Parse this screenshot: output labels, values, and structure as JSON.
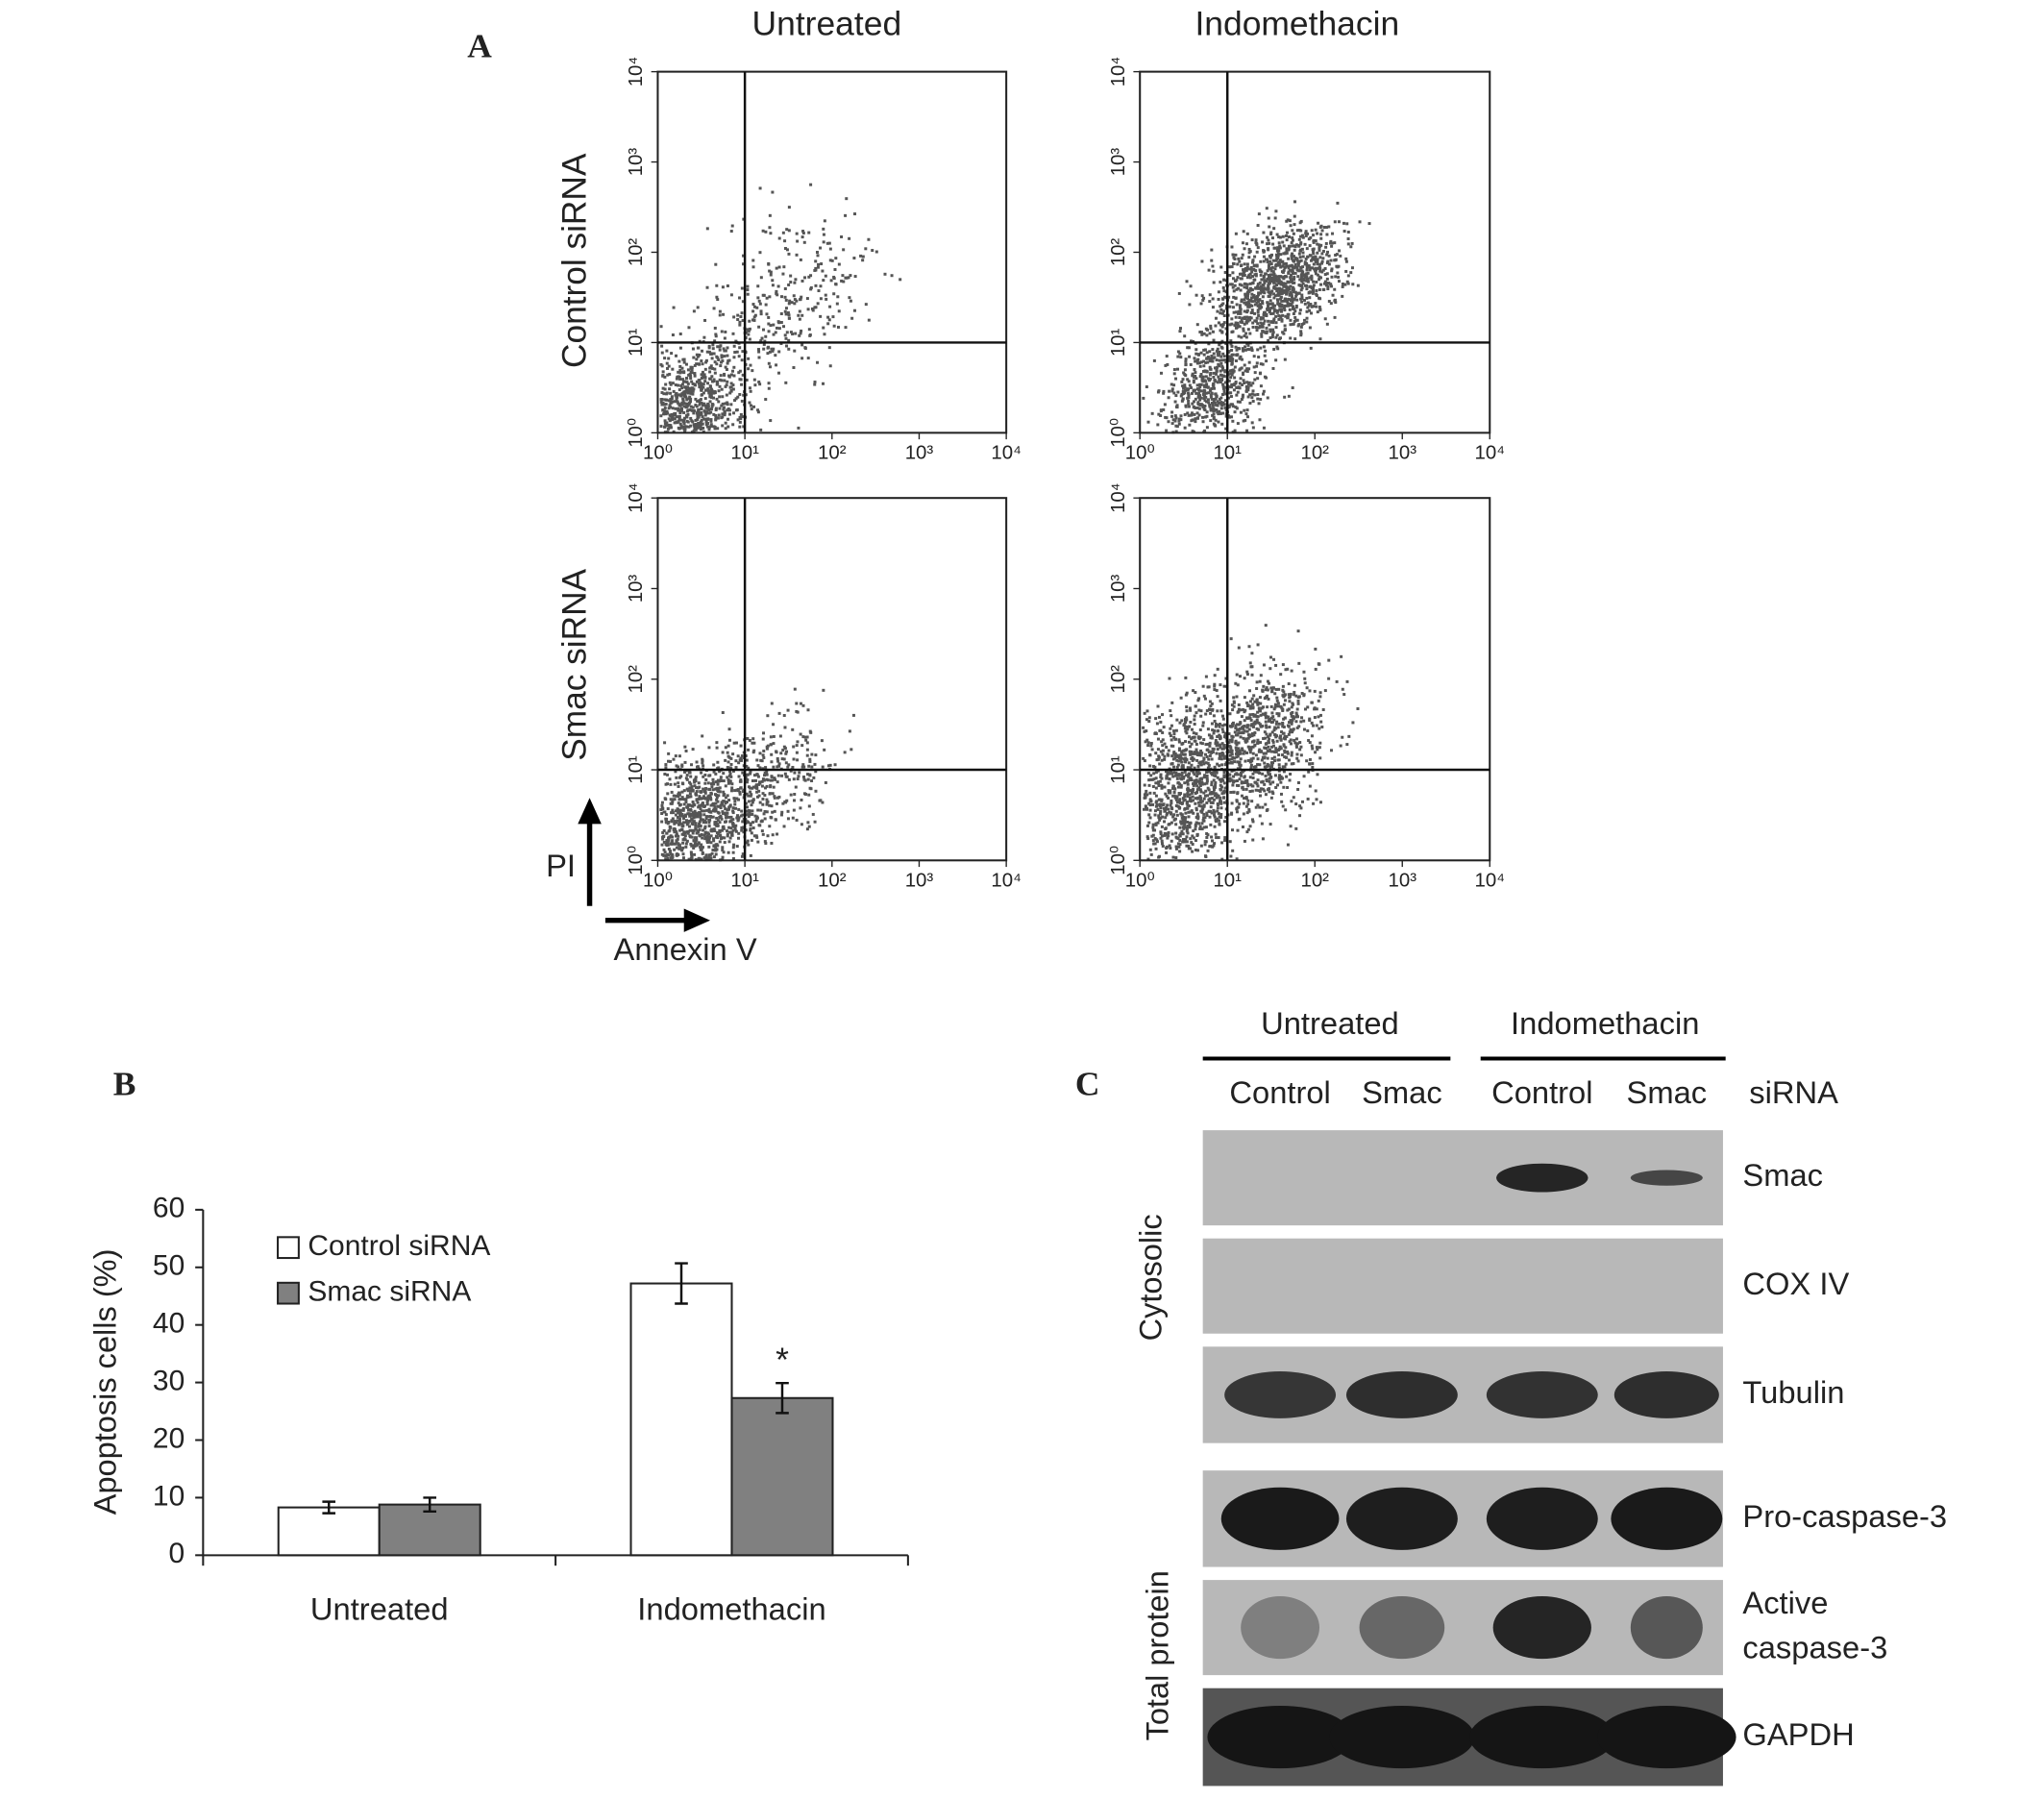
{
  "panel_labels": [
    "A",
    "B",
    "C"
  ],
  "flow": {
    "column_titles": [
      "Untreated",
      "Indomethacin"
    ],
    "row_labels": [
      "Control siRNA",
      "Smac siRNA"
    ],
    "x_label": "Annexin V",
    "y_label": "PI",
    "scale": "log",
    "xlim": [
      1,
      10000
    ],
    "ylim": [
      1,
      10000
    ],
    "gate": [
      10,
      10
    ],
    "xticks": [
      {
        "value": 1,
        "label": "10⁰"
      },
      {
        "value": 10,
        "label": "10¹"
      },
      {
        "value": 100,
        "label": "10²"
      },
      {
        "value": 1000,
        "label": "10³"
      },
      {
        "value": 10000,
        "label": "10⁴"
      }
    ],
    "yticks": [
      {
        "value": 1,
        "label": "10⁰"
      },
      {
        "value": 10,
        "label": "10¹"
      },
      {
        "value": 100,
        "label": "10²"
      },
      {
        "value": 1000,
        "label": "10³"
      },
      {
        "value": 10000,
        "label": "10⁴"
      }
    ]
  },
  "chart_data": {
    "type": "bar",
    "y_label": "Apoptosis cells (%)",
    "categories": [
      "Untreated",
      "Indomethacin"
    ],
    "series": [
      {
        "name": "Control siRNA",
        "color": "#ffffff",
        "values": [
          8.3,
          47.2
        ],
        "errors": [
          1.0,
          3.5
        ]
      },
      {
        "name": "Smac siRNA",
        "color": "#808080",
        "values": [
          8.8,
          27.3
        ],
        "errors": [
          1.2,
          2.6
        ],
        "annotations": [
          null,
          "*"
        ]
      }
    ],
    "ylim": [
      0,
      60
    ],
    "yticks": [
      0,
      10,
      20,
      30,
      40,
      50,
      60
    ],
    "legend": "top-left"
  },
  "blot": {
    "group_labels": [
      "Untreated",
      "Indomethacin"
    ],
    "lane_labels": [
      "Control",
      "Smac",
      "Control",
      "Smac"
    ],
    "lane_axis_label": "siRNA",
    "section_labels": [
      "Cytosolic",
      "Total protein"
    ],
    "rows": [
      {
        "label": "Smac"
      },
      {
        "label": "COX IV"
      },
      {
        "label": "Tubulin"
      },
      {
        "label": "Pro-caspase-3"
      },
      {
        "label": [
          "Active",
          "caspase-3"
        ]
      },
      {
        "label": "GAPDH"
      }
    ]
  }
}
